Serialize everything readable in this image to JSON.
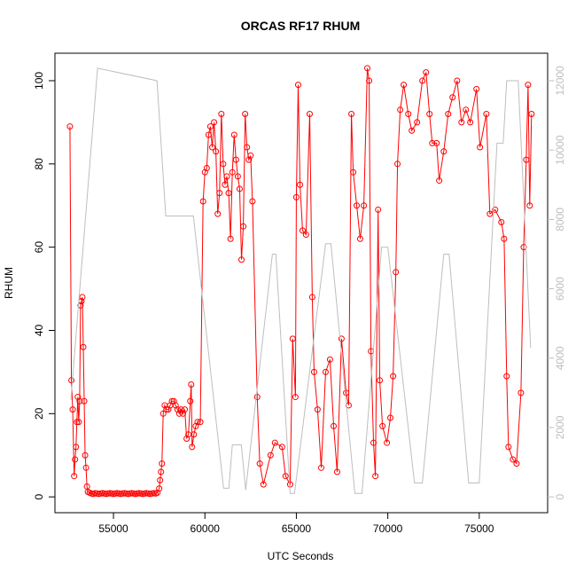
{
  "chart_data": {
    "type": "line",
    "title": "ORCAS RF17 RHUM",
    "x_label": "UTC Seconds",
    "y_label": "RHUM",
    "xlim": [
      51800,
      78740
    ],
    "xticks": [
      55000,
      60000,
      65000,
      70000,
      75000
    ],
    "ylim": [
      -3.8,
      106.6
    ],
    "yticks": [
      0,
      20,
      40,
      60,
      80,
      100
    ],
    "y2lim": [
      -456,
      12792
    ],
    "y2ticks": [
      0,
      2000,
      4000,
      6000,
      8000,
      10000,
      12000
    ],
    "series": [
      {
        "color": "#ff0000",
        "markers": true,
        "x": [
          52620,
          52700,
          52770,
          52850,
          52900,
          52950,
          53000,
          53050,
          53100,
          53150,
          53200,
          53250,
          53300,
          53350,
          53400,
          53450,
          53500,
          53550,
          53600,
          53700,
          53800,
          53900,
          54000,
          54100,
          54200,
          54300,
          54400,
          54500,
          54600,
          54700,
          54800,
          54900,
          55000,
          55100,
          55200,
          55300,
          55400,
          55500,
          55600,
          55700,
          55800,
          55900,
          56000,
          56100,
          56200,
          56300,
          56400,
          56500,
          56600,
          56700,
          56800,
          56900,
          57000,
          57100,
          57200,
          57300,
          57400,
          57500,
          57550,
          57600,
          57650,
          57720,
          57800,
          57900,
          58000,
          58100,
          58200,
          58300,
          58400,
          58500,
          58600,
          58700,
          58800,
          58900,
          59000,
          59100,
          59200,
          59250,
          59300,
          59400,
          59500,
          59600,
          59750,
          59900,
          60000,
          60100,
          60200,
          60300,
          60400,
          60500,
          60600,
          60700,
          60800,
          60900,
          61000,
          61100,
          61200,
          61300,
          61400,
          61500,
          61600,
          61700,
          61800,
          61900,
          62000,
          62100,
          62200,
          62300,
          62400,
          62500,
          62600,
          62860,
          63000,
          63200,
          63590,
          63830,
          64220,
          64410,
          64660,
          64800,
          64950,
          65000,
          65100,
          65200,
          65340,
          65530,
          65730,
          65870,
          65970,
          66160,
          66360,
          66600,
          66840,
          67040,
          67230,
          67470,
          67720,
          67860,
          68010,
          68110,
          68300,
          68490,
          68690,
          68880,
          68980,
          69080,
          69220,
          69320,
          69470,
          69560,
          69710,
          69950,
          70140,
          70290,
          70440,
          70530,
          70680,
          70870,
          71120,
          71310,
          71600,
          71890,
          72090,
          72280,
          72430,
          72670,
          72810,
          73060,
          73300,
          73540,
          73790,
          74030,
          74270,
          74510,
          74850,
          75040,
          75390,
          75580,
          75870,
          76210,
          76360,
          76500,
          76600,
          76840,
          77040,
          77280,
          77430,
          77570,
          77670,
          77760,
          77860
        ],
        "values": [
          89,
          28,
          21,
          5,
          9,
          12,
          18,
          24,
          18,
          23,
          46,
          47,
          48,
          36,
          23,
          10,
          7,
          2.5,
          1.2,
          1,
          0.8,
          0.7,
          0.9,
          0.8,
          0.7,
          0.8,
          0.9,
          0.8,
          0.7,
          0.8,
          0.9,
          0.8,
          0.7,
          0.8,
          0.9,
          0.8,
          0.7,
          0.8,
          0.9,
          0.8,
          0.7,
          0.8,
          0.9,
          0.8,
          0.7,
          0.8,
          0.9,
          0.8,
          0.7,
          0.8,
          0.9,
          0.8,
          0.7,
          0.8,
          0.9,
          0.8,
          1,
          2,
          4,
          6,
          8,
          20,
          22,
          21,
          21,
          22,
          23,
          23,
          22,
          21,
          20,
          21,
          20,
          21,
          14,
          15,
          23,
          27,
          12,
          15,
          17,
          18,
          18,
          71,
          78,
          79,
          87,
          89,
          84,
          90,
          83,
          68,
          73,
          92,
          80,
          75,
          77,
          73,
          62,
          78,
          87,
          81,
          77,
          74,
          57,
          65,
          92,
          84,
          81,
          82,
          71,
          24,
          8,
          3,
          10,
          13,
          12,
          5,
          3,
          38,
          24,
          72,
          99,
          75,
          64,
          63,
          92,
          48,
          30,
          21,
          7,
          30,
          33,
          17,
          6,
          38,
          25,
          22,
          92,
          78,
          70,
          62,
          70,
          103,
          100,
          35,
          13,
          5,
          69,
          28,
          17,
          13,
          19,
          29,
          54,
          80,
          93,
          99,
          92,
          88,
          90,
          100,
          102,
          92,
          85,
          85,
          76,
          83,
          92,
          96,
          100,
          90,
          93,
          90,
          98,
          84,
          92,
          68,
          69,
          66,
          62,
          29,
          12,
          9,
          8,
          25,
          60,
          81,
          99,
          70,
          92
        ]
      },
      {
        "color": "#bebebe",
        "markers": false,
        "axis": "y2",
        "x": [
          52670,
          54130,
          57380,
          57860,
          59370,
          61020,
          61310,
          61500,
          61990,
          62230,
          63690,
          63880,
          64660,
          64900,
          66600,
          66890,
          68200,
          68590,
          69660,
          70000,
          71460,
          71890,
          73060,
          73350,
          74420,
          75000,
          75970,
          76310,
          76500,
          77130,
          77810
        ],
        "values": [
          2800,
          12360,
          12000,
          8100,
          8100,
          250,
          250,
          1500,
          1500,
          200,
          7000,
          7000,
          100,
          100,
          7300,
          7300,
          100,
          100,
          7200,
          7200,
          400,
          400,
          7000,
          7000,
          400,
          400,
          10200,
          10200,
          12000,
          12000,
          4300
        ]
      }
    ]
  }
}
